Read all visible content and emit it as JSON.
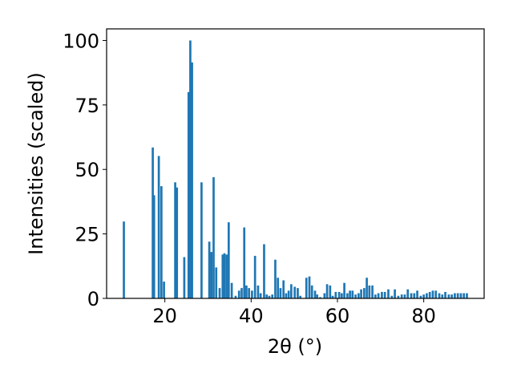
{
  "chart_data": {
    "type": "bar",
    "xlabel": "2θ (°)",
    "ylabel": "Intensities (scaled)",
    "xlim": [
      6.5,
      94.0
    ],
    "ylim": [
      0,
      104.5
    ],
    "xticks": [
      20,
      40,
      60,
      80
    ],
    "yticks": [
      0,
      25,
      50,
      75,
      100
    ],
    "bar_color": "#1f77b4",
    "grid": false,
    "bar_width": 0.5,
    "x": [
      10.5,
      17.2,
      17.5,
      18.6,
      19.2,
      19.8,
      22.4,
      22.8,
      24.5,
      25.5,
      25.9,
      26.3,
      28.5,
      30.3,
      30.8,
      31.3,
      31.9,
      32.7,
      33.4,
      33.8,
      34.3,
      34.8,
      35.5,
      36.4,
      37.2,
      37.8,
      38.4,
      38.9,
      39.5,
      40.2,
      40.9,
      41.6,
      42.2,
      43.0,
      43.6,
      44.2,
      44.9,
      45.6,
      46.2,
      46.8,
      47.5,
      48.1,
      48.7,
      49.3,
      50.1,
      50.8,
      51.4,
      52.8,
      53.5,
      54.1,
      54.8,
      55.3,
      56.0,
      57.0,
      57.6,
      58.3,
      58.9,
      59.6,
      60.4,
      61.0,
      61.6,
      62.3,
      62.9,
      63.5,
      64.2,
      64.9,
      65.5,
      66.2,
      66.8,
      67.4,
      68.1,
      68.8,
      69.5,
      70.3,
      71.0,
      71.8,
      72.6,
      73.3,
      74.1,
      74.9,
      75.6,
      76.3,
      77.1,
      77.8,
      78.5,
      79.3,
      80.0,
      80.7,
      81.4,
      82.1,
      82.8,
      83.6,
      84.3,
      85.0,
      85.8,
      86.5,
      87.2,
      87.9,
      88.6,
      89.3,
      90.0
    ],
    "values": [
      29.8,
      58.5,
      40.0,
      55.2,
      43.5,
      6.5,
      45.0,
      43.0,
      16.0,
      80.0,
      100.0,
      91.5,
      45.0,
      22.0,
      18.0,
      47.0,
      12.0,
      4.0,
      17.0,
      17.5,
      17.0,
      29.5,
      6.0,
      1.0,
      3.0,
      4.0,
      27.5,
      5.0,
      4.0,
      3.0,
      16.5,
      5.0,
      2.0,
      21.0,
      1.5,
      1.0,
      1.5,
      15.0,
      8.0,
      4.0,
      7.0,
      2.0,
      3.0,
      5.5,
      4.5,
      4.0,
      1.0,
      8.0,
      8.5,
      5.0,
      3.0,
      1.5,
      0.5,
      2.0,
      5.5,
      5.0,
      1.0,
      2.5,
      2.5,
      2.0,
      6.0,
      2.0,
      3.0,
      3.0,
      1.5,
      2.0,
      3.5,
      4.0,
      8.0,
      5.0,
      5.0,
      1.5,
      2.0,
      2.5,
      2.5,
      3.5,
      1.0,
      3.5,
      1.0,
      1.5,
      1.5,
      3.5,
      2.0,
      2.0,
      3.0,
      1.0,
      1.5,
      2.0,
      2.5,
      3.0,
      3.0,
      2.0,
      1.5,
      2.5,
      1.5,
      1.5,
      2.0,
      2.0,
      2.0,
      2.0,
      2.0
    ]
  }
}
